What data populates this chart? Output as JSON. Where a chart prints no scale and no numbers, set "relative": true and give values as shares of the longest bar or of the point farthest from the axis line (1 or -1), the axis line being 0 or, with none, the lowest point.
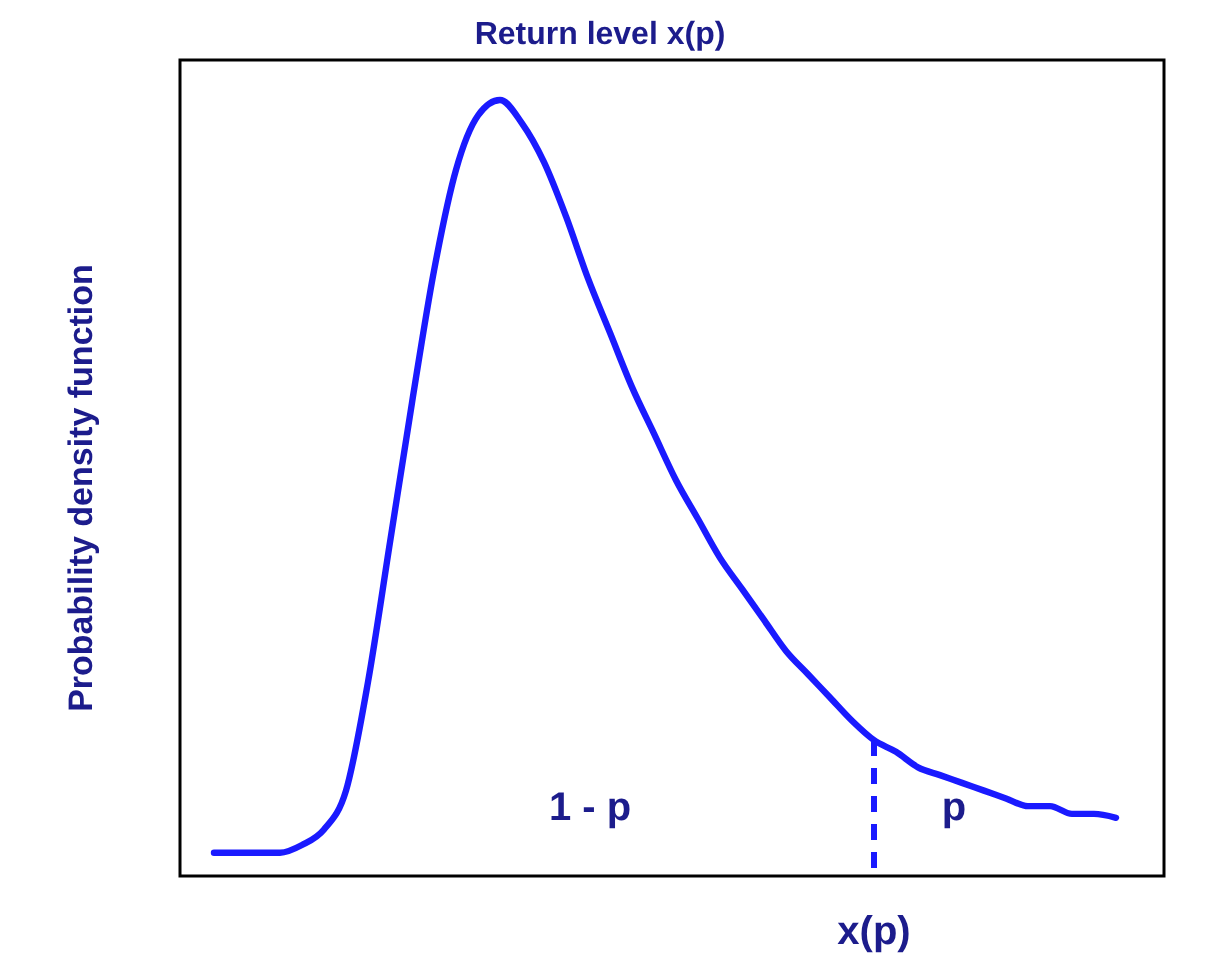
{
  "chart_data": {
    "type": "line",
    "title": "Return level x(p)",
    "ylabel": "Probability density function",
    "relative": true,
    "categories": [
      null,
      null,
      null,
      null,
      null,
      null,
      null,
      null,
      null,
      null,
      null,
      null,
      null,
      null,
      null,
      null,
      null,
      null,
      null,
      null,
      null,
      null,
      null,
      null,
      null,
      null,
      null,
      null,
      null,
      null,
      null,
      null,
      null,
      null,
      null,
      null,
      null,
      null,
      null,
      null,
      null,
      null
    ],
    "series": [
      {
        "color": "#1a1aff",
        "values": [
          0.03,
          0.03,
          0.03,
          0.03,
          0.04,
          0.06,
          0.11,
          0.25,
          0.43,
          0.61,
          0.78,
          0.91,
          0.98,
          1,
          0.97,
          0.92,
          0.85,
          0.77,
          0.7,
          0.63,
          0.57,
          0.51,
          0.46,
          0.41,
          0.37,
          0.33,
          0.29,
          0.26,
          0.23,
          0.2,
          0.175,
          0.16,
          0.14,
          0.13,
          0.12,
          0.11,
          0.1,
          0.09,
          0.09,
          0.08,
          0.08,
          0.075
        ]
      }
    ],
    "annotations": [
      "1 - p",
      "p",
      "x(p)"
    ]
  }
}
